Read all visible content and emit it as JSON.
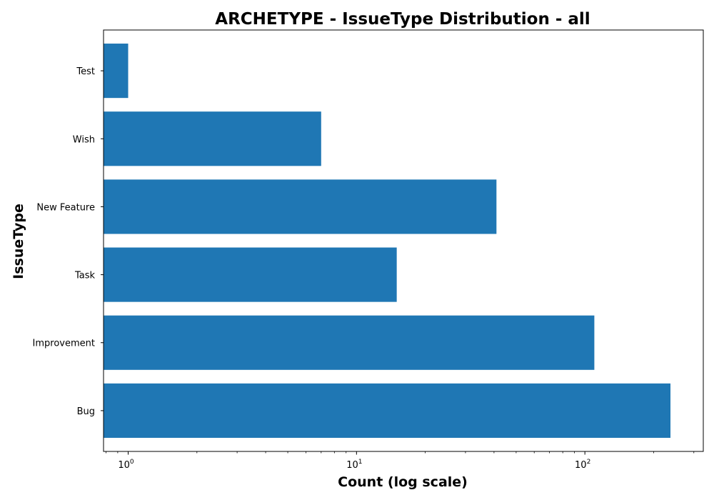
{
  "chart_data": {
    "type": "bar",
    "orientation": "horizontal",
    "title": "ARCHETYPE - IssueType Distribution - all",
    "xlabel": "Count (log scale)",
    "ylabel": "IssueType",
    "x_scale": "log",
    "xlim": [
      0.78,
      330
    ],
    "categories": [
      "Bug",
      "Improvement",
      "Task",
      "New Feature",
      "Wish",
      "Test"
    ],
    "values": [
      237,
      110,
      15,
      41,
      7,
      1
    ],
    "x_ticks": [
      {
        "value": 1,
        "base": "10",
        "exp": "0"
      },
      {
        "value": 10,
        "base": "10",
        "exp": "1"
      },
      {
        "value": 100,
        "base": "10",
        "exp": "2"
      }
    ],
    "bar_color": "#1f77b4",
    "grid": false,
    "legend": "none"
  }
}
